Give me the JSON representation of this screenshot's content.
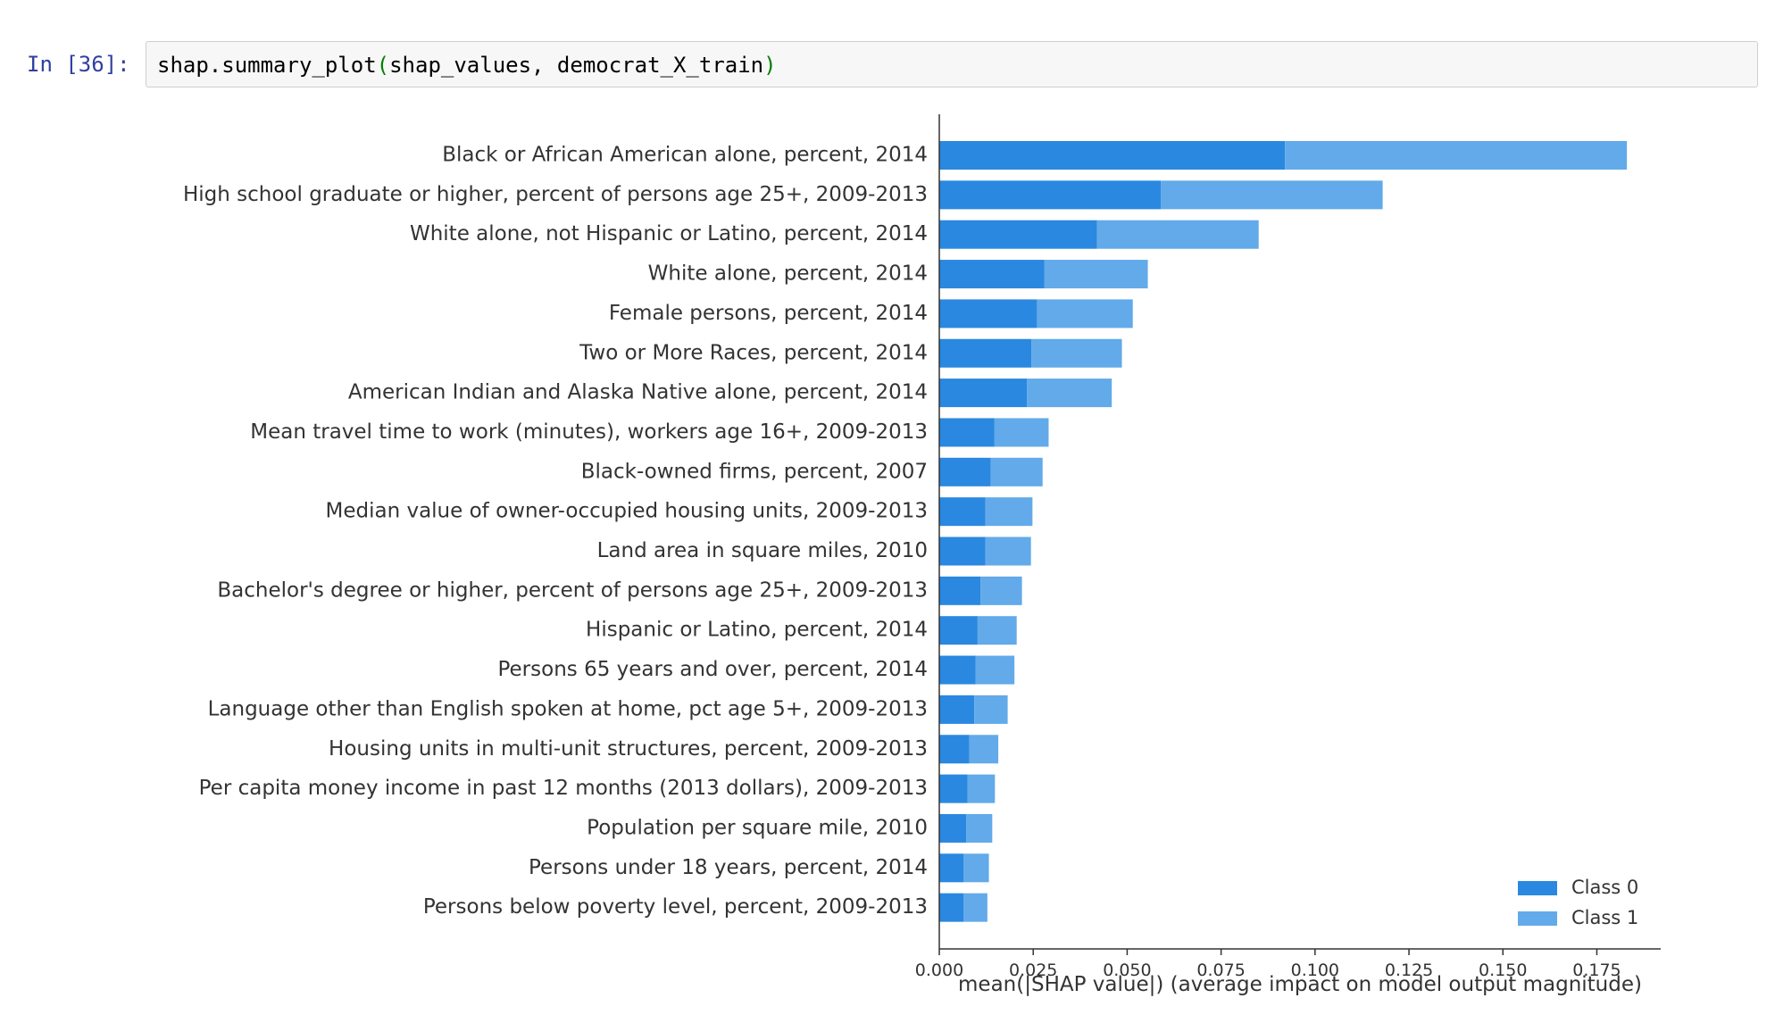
{
  "cell": {
    "prompt": "In [36]:",
    "code": {
      "func": "shap.summary_plot",
      "open_paren": "(",
      "args": "shap_values, democrat_X_train",
      "close_paren": ")"
    }
  },
  "chart_data": {
    "type": "bar",
    "orientation": "horizontal",
    "stacked": true,
    "categories": [
      "Black or African American alone, percent, 2014",
      "High school graduate or higher, percent of persons age 25+, 2009-2013",
      "White alone, not Hispanic or Latino, percent, 2014",
      "White alone, percent, 2014",
      "Female persons, percent, 2014",
      "Two or More Races, percent, 2014",
      "American Indian and Alaska Native alone, percent, 2014",
      "Mean travel time to work (minutes), workers age 16+, 2009-2013",
      "Black-owned firms, percent, 2007",
      "Median value of owner-occupied housing units, 2009-2013",
      "Land area in square miles, 2010",
      "Bachelor's degree or higher, percent of persons age 25+, 2009-2013",
      "Hispanic or Latino, percent, 2014",
      "Persons 65 years and over, percent, 2014",
      "Language other than English spoken at home, pct age 5+, 2009-2013",
      "Housing units in multi-unit structures, percent, 2009-2013",
      "Per capita money income in past 12 months (2013 dollars), 2009-2013",
      "Population per square mile, 2010",
      "Persons under 18 years, percent, 2014",
      "Persons below poverty level, percent, 2009-2013"
    ],
    "series": [
      {
        "name": "Class 0",
        "color": "#2a88e0",
        "values": [
          0.092,
          0.059,
          0.042,
          0.028,
          0.026,
          0.0245,
          0.0233,
          0.0147,
          0.0137,
          0.0123,
          0.0123,
          0.011,
          0.0102,
          0.0097,
          0.0093,
          0.008,
          0.0075,
          0.0072,
          0.0065,
          0.0065
        ]
      },
      {
        "name": "Class 1",
        "color": "#62aae9",
        "values": [
          0.091,
          0.059,
          0.043,
          0.0275,
          0.0255,
          0.0241,
          0.0226,
          0.0144,
          0.0138,
          0.0125,
          0.0121,
          0.011,
          0.0104,
          0.0103,
          0.0089,
          0.0077,
          0.0073,
          0.0069,
          0.0067,
          0.0063
        ]
      }
    ],
    "xlabel": "mean(|SHAP value|) (average impact on model output magnitude)",
    "ylabel": "",
    "xlim": [
      0,
      0.192
    ],
    "xticks": [
      0.0,
      0.025,
      0.05,
      0.075,
      0.1,
      0.125,
      0.15,
      0.175
    ],
    "xtick_labels": [
      "0.000",
      "0.025",
      "0.050",
      "0.075",
      "0.100",
      "0.125",
      "0.150",
      "0.175"
    ],
    "grid": false,
    "legend_position": "bottom-right"
  }
}
